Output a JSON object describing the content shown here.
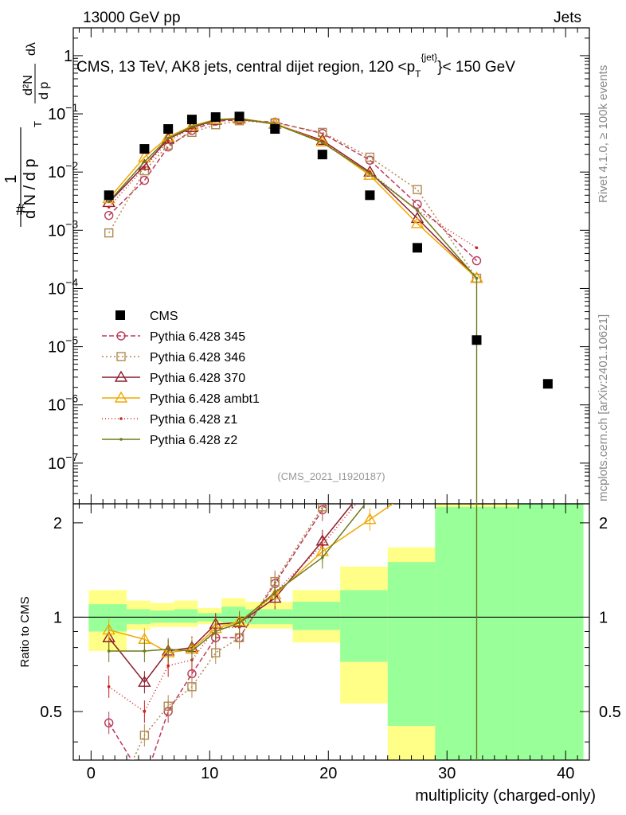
{
  "header": {
    "energy_label": "13000 GeV pp",
    "category_label": "Jets"
  },
  "side_labels": {
    "rivet": "Rivet 4.1.0, ≥ 100k events",
    "source": "mcplots.cern.ch [arXiv:2401.10621]"
  },
  "chart_data": {
    "type": "line",
    "title": "CMS, 13 TeV, AK8 jets, central dijet region, 120 < p_T^{jet} < 150 GeV",
    "title_parts": {
      "pre": "CMS, 13 TeV, AK8 jets, central dijet region, 120 <",
      "var": "p",
      "sub": "T",
      "sup": "{jet}",
      "post": "}< 150 GeV"
    },
    "analysis_id": "(CMS_2021_I1920187)",
    "xlabel": "multiplicity (charged-only)",
    "ylabel": "1/N dN/dλ",
    "ylabel_parts": {
      "num_main": "1",
      "den_main": "d N / d p",
      "t": "T",
      "frac_num": "d²N",
      "frac_den": "d p",
      "lam": "dλ",
      "hash": "#"
    },
    "ratio_ylabel": "Ratio to CMS",
    "xlim": [
      -1.5,
      42
    ],
    "ylim_main": [
      2e-08,
      3
    ],
    "ylim_ratio": [
      0.35,
      2.3
    ],
    "x_ticks": [
      0,
      10,
      20,
      30,
      40
    ],
    "main_y_ticks": [
      {
        "value": 1e-07,
        "base": "10",
        "exp": "−7"
      },
      {
        "value": 1e-06,
        "base": "10",
        "exp": "−6"
      },
      {
        "value": 1e-05,
        "base": "10",
        "exp": "−5"
      },
      {
        "value": 0.0001,
        "base": "10",
        "exp": "−4"
      },
      {
        "value": 0.001,
        "base": "10",
        "exp": "−3"
      },
      {
        "value": 0.01,
        "base": "10",
        "exp": "−2"
      },
      {
        "value": 0.1,
        "base": "10",
        "exp": "−1"
      },
      {
        "value": 1,
        "base": "1",
        "exp": ""
      }
    ],
    "ratio_y_ticks": [
      "0.5",
      "1",
      "2"
    ],
    "cms": {
      "name": "CMS",
      "x": [
        1.5,
        4.5,
        6.5,
        8.5,
        10.5,
        12.5,
        15.5,
        19.5,
        23.5,
        27.5,
        32.5,
        38.5
      ],
      "y": [
        0.004,
        0.025,
        0.055,
        0.08,
        0.088,
        0.09,
        0.055,
        0.02,
        0.004,
        0.0005,
        1.3e-05,
        2.3e-06
      ]
    },
    "ratio_bands": [
      {
        "x0": -0.2,
        "x1": 3,
        "yellow": [
          0.78,
          1.22
        ],
        "green": [
          0.9,
          1.1
        ]
      },
      {
        "x0": 3,
        "x1": 5,
        "yellow": [
          0.91,
          1.13
        ],
        "green": [
          0.95,
          1.06
        ]
      },
      {
        "x0": 5,
        "x1": 7,
        "yellow": [
          0.93,
          1.11
        ],
        "green": [
          0.96,
          1.05
        ]
      },
      {
        "x0": 7,
        "x1": 9,
        "yellow": [
          0.93,
          1.13
        ],
        "green": [
          0.96,
          1.06
        ]
      },
      {
        "x0": 9,
        "x1": 11,
        "yellow": [
          0.95,
          1.07
        ],
        "green": [
          0.97,
          1.03
        ]
      },
      {
        "x0": 11,
        "x1": 13,
        "yellow": [
          0.93,
          1.15
        ],
        "green": [
          0.96,
          1.08
        ]
      },
      {
        "x0": 13,
        "x1": 17,
        "yellow": [
          0.92,
          1.12
        ],
        "green": [
          0.95,
          1.06
        ]
      },
      {
        "x0": 17,
        "x1": 21,
        "yellow": [
          0.83,
          1.22
        ],
        "green": [
          0.91,
          1.12
        ]
      },
      {
        "x0": 21,
        "x1": 25,
        "yellow": [
          0.53,
          1.45
        ],
        "green": [
          0.72,
          1.22
        ]
      },
      {
        "x0": 25,
        "x1": 29,
        "yellow": [
          0.35,
          1.67
        ],
        "green": [
          0.45,
          1.5
        ]
      },
      {
        "x0": 29,
        "x1": 36,
        "yellow": [
          0.35,
          2.3
        ],
        "green": [
          0.35,
          2.25
        ]
      },
      {
        "x0": 36,
        "x1": 41.5,
        "yellow": [
          0.35,
          2.3
        ],
        "green": [
          0.35,
          2.3
        ]
      }
    ],
    "series": [
      {
        "name": "Pythia 6.428 345",
        "color": "#bb3a5a",
        "marker": "circle",
        "dash": "6,3",
        "x": [
          1.5,
          4.5,
          6.5,
          8.5,
          10.5,
          12.5,
          15.5,
          19.5,
          23.5,
          27.5,
          32.5
        ],
        "y": [
          0.0018,
          0.0072,
          0.027,
          0.052,
          0.075,
          0.078,
          0.072,
          0.046,
          0.016,
          0.0028,
          0.0003
        ],
        "ratio": [
          0.46,
          0.3,
          0.5,
          0.66,
          0.86,
          0.86,
          1.28,
          2.2,
          3.8,
          5.5,
          20
        ]
      },
      {
        "name": "Pythia 6.428 346",
        "color": "#b08a50",
        "marker": "square",
        "dash": "2,3",
        "x": [
          1.5,
          4.5,
          6.5,
          8.5,
          10.5,
          12.5,
          15.5,
          19.5,
          23.5,
          27.5,
          32.5
        ],
        "y": [
          0.0009,
          0.0105,
          0.029,
          0.048,
          0.065,
          0.076,
          0.07,
          0.048,
          0.018,
          0.005,
          0.00015
        ],
        "ratio": [
          0.24,
          0.42,
          0.52,
          0.6,
          0.77,
          0.86,
          1.3,
          2.25,
          4.2,
          9,
          20
        ]
      },
      {
        "name": "Pythia 6.428 370",
        "color": "#8c1c2c",
        "marker": "triangle",
        "dash": "",
        "x": [
          1.5,
          4.5,
          6.5,
          8.5,
          10.5,
          12.5,
          15.5,
          19.5,
          23.5,
          27.5,
          32.5
        ],
        "y": [
          0.003,
          0.013,
          0.037,
          0.058,
          0.078,
          0.082,
          0.067,
          0.035,
          0.01,
          0.0016,
          0.00015
        ],
        "ratio": [
          0.86,
          0.62,
          0.78,
          0.8,
          0.95,
          0.96,
          1.15,
          1.75,
          2.7,
          3.5,
          12
        ]
      },
      {
        "name": "Pythia 6.428 ambt1",
        "color": "#f0a800",
        "marker": "triangle",
        "dash": "",
        "x": [
          1.5,
          4.5,
          6.5,
          8.5,
          10.5,
          12.5,
          15.5,
          19.5,
          23.5,
          27.5,
          32.5
        ],
        "y": [
          0.0035,
          0.018,
          0.04,
          0.062,
          0.08,
          0.084,
          0.068,
          0.033,
          0.0088,
          0.0013,
          0.00015
        ],
        "ratio": [
          0.91,
          0.85,
          0.77,
          0.79,
          0.92,
          0.97,
          1.18,
          1.62,
          2.05,
          2.6,
          12
        ]
      },
      {
        "name": "Pythia 6.428 z1",
        "color": "#cc2020",
        "marker": "dot",
        "dash": "1,3",
        "x": [
          1.5,
          4.5,
          6.5,
          8.5,
          10.5,
          12.5,
          15.5,
          19.5,
          23.5,
          27.5,
          32.5
        ],
        "y": [
          0.0025,
          0.012,
          0.034,
          0.057,
          0.076,
          0.081,
          0.066,
          0.034,
          0.01,
          0.0022,
          0.0005
        ],
        "ratio": [
          0.6,
          0.5,
          0.7,
          0.73,
          0.92,
          0.93,
          1.2,
          1.7,
          2.6,
          4.4,
          38
        ]
      },
      {
        "name": "Pythia 6.428 z2",
        "color": "#6b7a1c",
        "marker": "dot",
        "dash": "",
        "x": [
          1.5,
          4.5,
          6.5,
          8.5,
          10.5,
          12.5,
          15.5,
          19.5,
          23.5,
          27.5,
          32.5
        ],
        "y": [
          0.0031,
          0.015,
          0.038,
          0.06,
          0.079,
          0.083,
          0.067,
          0.032,
          0.0095,
          0.0022,
          0.00015
        ],
        "ratio": [
          0.78,
          0.78,
          0.79,
          0.78,
          0.9,
          0.96,
          1.2,
          1.55,
          2.4,
          4.4,
          12
        ]
      }
    ]
  }
}
